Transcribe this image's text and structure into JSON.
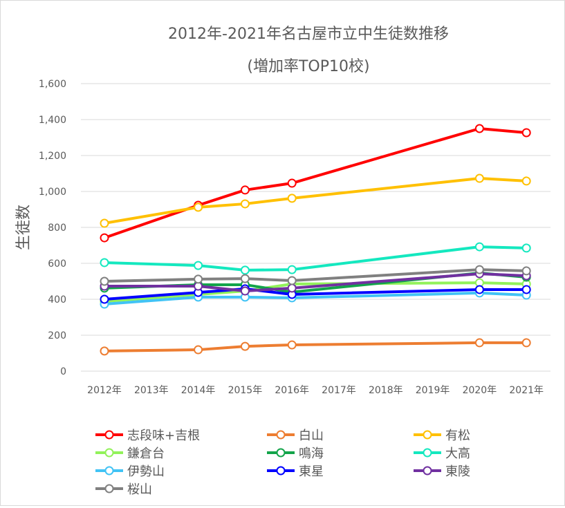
{
  "chart_data": {
    "type": "line",
    "title": "2012年-2021年名古屋市立中生徒数推移",
    "subtitle": "(増加率TOP10校)",
    "xlabel": "",
    "ylabel": "生徒数",
    "ylim": [
      0,
      1600
    ],
    "yticks": [
      "0",
      "200",
      "400",
      "600",
      "800",
      "1,000",
      "1,200",
      "1,400",
      "1,600"
    ],
    "categories": [
      "2012年",
      "2013年",
      "2014年",
      "2015年",
      "2016年",
      "2017年",
      "2018年",
      "2019年",
      "2020年",
      "2021年"
    ],
    "grid": true,
    "legend_position": "bottom",
    "series": [
      {
        "name": "志段味+吉根",
        "color": "#ff0000",
        "values": [
          742,
          null,
          923,
          1008,
          1046,
          null,
          null,
          null,
          1350,
          1327
        ]
      },
      {
        "name": "白山",
        "color": "#ed7d31",
        "values": [
          112,
          null,
          119,
          138,
          146,
          null,
          null,
          null,
          158,
          158
        ]
      },
      {
        "name": "有松",
        "color": "#ffc000",
        "values": [
          823,
          null,
          912,
          931,
          962,
          null,
          null,
          null,
          1073,
          1058
        ]
      },
      {
        "name": "鎌倉台",
        "color": "#92f25a",
        "values": [
          388,
          null,
          427,
          446,
          485,
          null,
          null,
          null,
          492,
          485
        ]
      },
      {
        "name": "鳴海",
        "color": "#13a44a",
        "values": [
          462,
          null,
          481,
          481,
          440,
          null,
          null,
          null,
          546,
          523
        ]
      },
      {
        "name": "大高",
        "color": "#14e8bf",
        "values": [
          604,
          null,
          588,
          562,
          565,
          null,
          null,
          null,
          692,
          685
        ]
      },
      {
        "name": "伊勢山",
        "color": "#41c3f5",
        "values": [
          373,
          null,
          412,
          412,
          408,
          null,
          null,
          null,
          435,
          423
        ]
      },
      {
        "name": "東星",
        "color": "#0000ff",
        "values": [
          400,
          null,
          438,
          458,
          427,
          null,
          null,
          null,
          454,
          454
        ]
      },
      {
        "name": "東陵",
        "color": "#7030a0",
        "values": [
          473,
          null,
          473,
          446,
          462,
          null,
          null,
          null,
          542,
          531
        ]
      },
      {
        "name": "桜山",
        "color": "#808080",
        "values": [
          500,
          null,
          512,
          515,
          504,
          null,
          null,
          null,
          565,
          558
        ]
      }
    ]
  }
}
